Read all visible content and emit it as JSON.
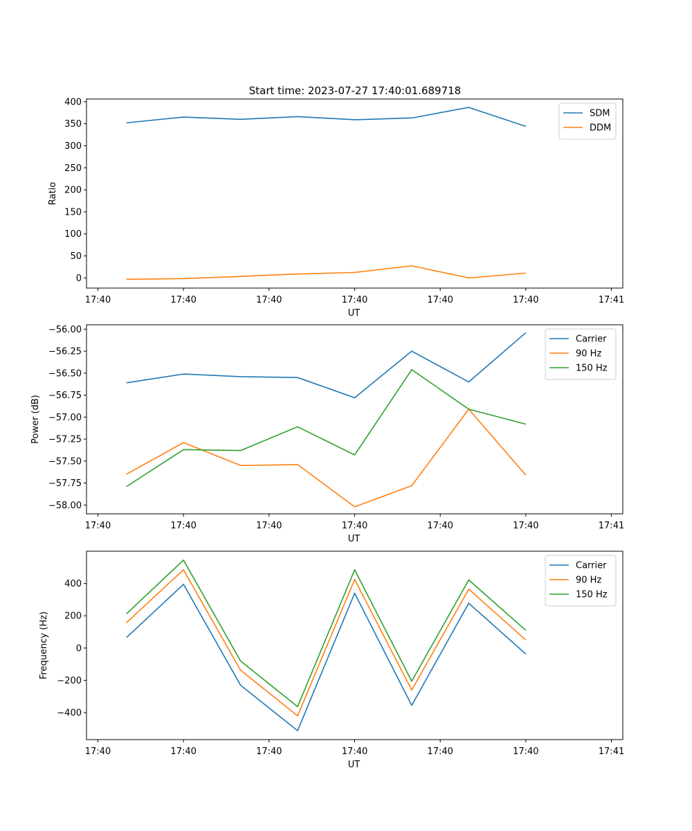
{
  "chart_data": [
    {
      "type": "line",
      "title": "Start time: 2023-07-27 17:40:01.689718",
      "xlabel": "UT",
      "ylabel": "Ratio",
      "x": [
        0.5,
        1.5,
        2.5,
        3.5,
        4.5,
        5.5,
        6.5,
        7.5
      ],
      "xlim": [
        -0.2,
        9.2
      ],
      "xticks": [
        0,
        1.5,
        3.0,
        4.5,
        6.0,
        7.5,
        9.0
      ],
      "xtick_labels": [
        "17:40",
        "17:40",
        "17:40",
        "17:40",
        "17:40",
        "17:40",
        "17:41"
      ],
      "ylim": [
        -23,
        406
      ],
      "yticks": [
        0,
        50,
        100,
        150,
        200,
        250,
        300,
        350,
        400
      ],
      "ytick_labels": [
        "0",
        "50",
        "100",
        "150",
        "200",
        "250",
        "300",
        "350",
        "400"
      ],
      "legend_position": "top-right",
      "series": [
        {
          "name": "SDM",
          "color": "#1f77b4",
          "values": [
            352,
            365,
            360,
            366,
            359,
            363,
            387,
            344
          ]
        },
        {
          "name": "DDM",
          "color": "#ff7f0e",
          "values": [
            -3,
            -1.5,
            3.5,
            9,
            12.5,
            27.5,
            0,
            11
          ]
        }
      ]
    },
    {
      "type": "line",
      "xlabel": "UT",
      "ylabel": "Power (dB)",
      "x": [
        0.5,
        1.5,
        2.5,
        3.5,
        4.5,
        5.5,
        6.5,
        7.5
      ],
      "xlim": [
        -0.2,
        9.2
      ],
      "xticks": [
        0,
        1.5,
        3.0,
        4.5,
        6.0,
        7.5,
        9.0
      ],
      "xtick_labels": [
        "17:40",
        "17:40",
        "17:40",
        "17:40",
        "17:40",
        "17:40",
        "17:41"
      ],
      "ylim": [
        -58.1,
        -55.95
      ],
      "yticks": [
        -58.0,
        -57.75,
        -57.5,
        -57.25,
        -57.0,
        -56.75,
        -56.5,
        -56.25,
        -56.0
      ],
      "ytick_labels": [
        "−58.00",
        "−57.75",
        "−57.50",
        "−57.25",
        "−57.00",
        "−56.75",
        "−56.50",
        "−56.25",
        "−56.00"
      ],
      "legend_position": "top-right",
      "series": [
        {
          "name": "Carrier",
          "color": "#1f77b4",
          "values": [
            -56.61,
            -56.51,
            -56.54,
            -56.55,
            -56.78,
            -56.25,
            -56.6,
            -56.04
          ]
        },
        {
          "name": "90 Hz",
          "color": "#ff7f0e",
          "values": [
            -57.65,
            -57.29,
            -57.55,
            -57.54,
            -58.02,
            -57.78,
            -56.91,
            -57.66
          ]
        },
        {
          "name": "150 Hz",
          "color": "#2ca02c",
          "values": [
            -57.79,
            -57.37,
            -57.38,
            -57.11,
            -57.43,
            -56.46,
            -56.91,
            -57.08
          ]
        }
      ]
    },
    {
      "type": "line",
      "xlabel": "UT",
      "ylabel": "Frequency (Hz)",
      "x": [
        0.5,
        1.5,
        2.5,
        3.5,
        4.5,
        5.5,
        6.5,
        7.5
      ],
      "xlim": [
        -0.2,
        9.2
      ],
      "xticks": [
        0,
        1.5,
        3.0,
        4.5,
        6.0,
        7.5,
        9.0
      ],
      "xtick_labels": [
        "17:40",
        "17:40",
        "17:40",
        "17:40",
        "17:40",
        "17:40",
        "17:41"
      ],
      "ylim": [
        -567,
        600
      ],
      "yticks": [
        -400,
        -200,
        0,
        200,
        400
      ],
      "ytick_labels": [
        "−400",
        "−200",
        "0",
        "200",
        "400"
      ],
      "legend_position": "top-right",
      "series": [
        {
          "name": "Carrier",
          "color": "#1f77b4",
          "values": [
            65,
            395,
            -230,
            -512,
            340,
            -355,
            278,
            -37
          ]
        },
        {
          "name": "90 Hz",
          "color": "#ff7f0e",
          "values": [
            157,
            485,
            -137,
            -420,
            425,
            -260,
            365,
            50
          ]
        },
        {
          "name": "150 Hz",
          "color": "#2ca02c",
          "values": [
            212,
            545,
            -80,
            -363,
            485,
            -205,
            422,
            110
          ]
        }
      ]
    }
  ]
}
